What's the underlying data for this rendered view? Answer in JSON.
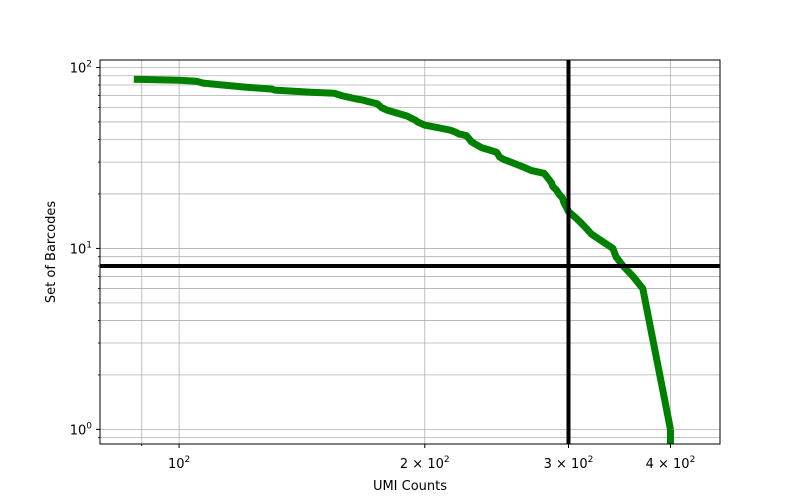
{
  "chart_data": {
    "type": "line",
    "title": "",
    "xlabel": "UMI Counts",
    "ylabel": "Set of Barcodes",
    "xscale": "log",
    "yscale": "log",
    "xlim": [
      80,
      460
    ],
    "ylim": [
      0.83,
      110
    ],
    "grid": true,
    "grid_minor": true,
    "x_ticks": [
      {
        "value": 100,
        "base": "10",
        "exp": "2"
      },
      {
        "value": 200,
        "base": "2 × 10",
        "exp": "2"
      },
      {
        "value": 300,
        "base": "3 × 10",
        "exp": "2"
      },
      {
        "value": 400,
        "base": "4 × 10",
        "exp": "2"
      }
    ],
    "y_ticks": [
      {
        "value": 1,
        "base": "10",
        "exp": "0"
      },
      {
        "value": 10,
        "base": "10",
        "exp": "1"
      },
      {
        "value": 100,
        "base": "10",
        "exp": "2"
      }
    ],
    "series": [
      {
        "color": "#008000",
        "x": [
          88,
          100,
          105,
          107,
          120,
          130,
          131,
          145,
          155,
          158,
          160,
          165,
          168,
          170,
          175,
          177,
          180,
          185,
          190,
          195,
          196,
          198,
          200,
          205,
          210,
          215,
          218,
          220,
          225,
          227,
          228,
          230,
          235,
          240,
          245,
          247,
          250,
          255,
          265,
          270,
          280,
          282,
          284,
          286,
          287,
          290,
          292,
          295,
          296,
          298,
          300,
          305,
          310,
          315,
          320,
          340,
          343,
          350,
          360,
          370,
          400
        ],
        "y": [
          86,
          85,
          84,
          82,
          78,
          76,
          75,
          73,
          72,
          70,
          69,
          67,
          66,
          65,
          63,
          60,
          58,
          56,
          54,
          51,
          50,
          49,
          48,
          47,
          46,
          45,
          44,
          43,
          42,
          40,
          39,
          38,
          36,
          35,
          34,
          32,
          31,
          30,
          28,
          27,
          26,
          25,
          24,
          23,
          22,
          21,
          20,
          19,
          18,
          17,
          16,
          15,
          14,
          13,
          12,
          10,
          9,
          8,
          7,
          6,
          1
        ]
      }
    ],
    "hlines": [
      {
        "y": 8,
        "color": "#000000"
      }
    ],
    "vlines": [
      {
        "x": 300,
        "color": "#000000"
      }
    ]
  }
}
